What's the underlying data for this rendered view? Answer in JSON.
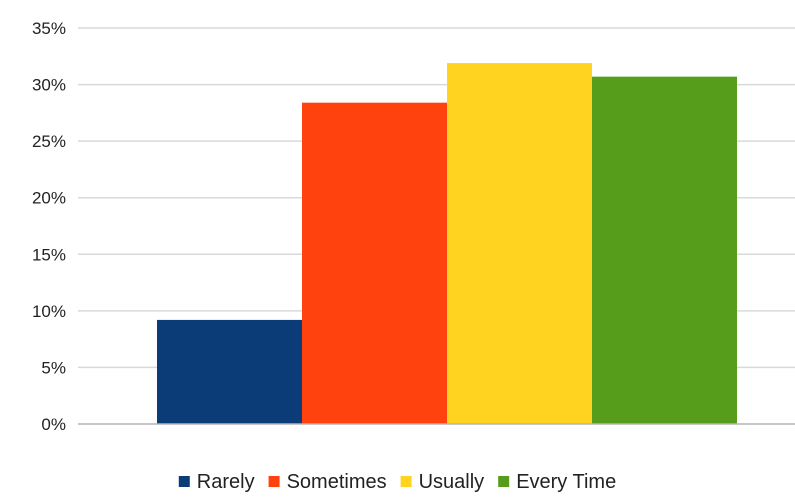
{
  "chart_data": {
    "type": "bar",
    "title": "",
    "xlabel": "",
    "ylabel": "",
    "ylim": [
      0,
      35
    ],
    "yticks": [
      0,
      5,
      10,
      15,
      20,
      25,
      30,
      35
    ],
    "tick_suffix": "%",
    "grid": true,
    "legend_position": "bottom",
    "series": [
      {
        "name": "Rarely",
        "value": 9.2,
        "color": "#0b3c78"
      },
      {
        "name": "Sometimes",
        "value": 28.4,
        "color": "#ff420e"
      },
      {
        "name": "Usually",
        "value": 31.9,
        "color": "#ffd320"
      },
      {
        "name": "Every Time",
        "value": 30.7,
        "color": "#579d1c"
      }
    ]
  },
  "colors": {
    "gridline": "#d9d9d9",
    "axis": "#b3b3b3",
    "text": "#222222"
  }
}
